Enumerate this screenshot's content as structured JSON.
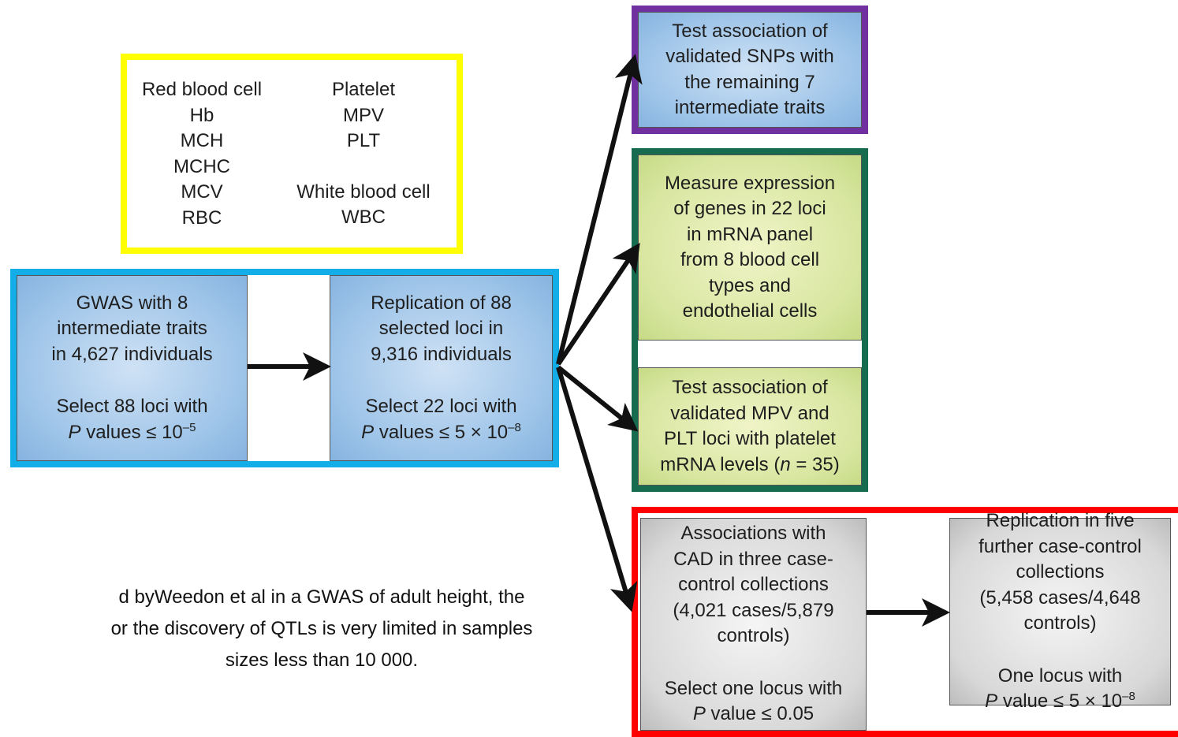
{
  "traits": {
    "left": [
      [
        "Red blood cell",
        "Hb",
        "MCH",
        "MCHC",
        "MCV",
        "RBC"
      ]
    ],
    "right": [
      [
        "Platelet",
        "MPV",
        "PLT"
      ],
      [
        "White blood cell",
        "WBC"
      ]
    ]
  },
  "boxes": {
    "gwas": {
      "paragraphs": [
        [
          "GWAS with 8",
          "intermediate traits",
          "in 4,627 individuals"
        ],
        [
          "Select 88 loci with",
          [
            {
              "italic": "P"
            },
            " values ≤ 10",
            {
              "sup": "–5"
            }
          ]
        ]
      ]
    },
    "replication": {
      "paragraphs": [
        [
          "Replication of 88",
          "selected loci in",
          "9,316 individuals"
        ],
        [
          "Select 22 loci with",
          [
            {
              "italic": "P"
            },
            " values ≤ 5 × 10",
            {
              "sup": "–8"
            }
          ]
        ]
      ]
    },
    "test_snps": {
      "paragraphs": [
        [
          "Test association of",
          "validated SNPs with",
          "the remaining 7",
          "intermediate traits"
        ]
      ]
    },
    "expression": {
      "paragraphs": [
        [
          "Measure expression",
          "of genes in 22 loci",
          "in mRNA panel",
          "from 8 blood cell",
          "types and",
          "endothelial cells"
        ]
      ]
    },
    "platelet": {
      "paragraphs": [
        [
          "Test association of",
          "validated MPV and",
          "PLT loci with platelet",
          [
            "mRNA levels (",
            {
              "italic": "n"
            },
            " = 35)"
          ]
        ]
      ]
    },
    "cad": {
      "paragraphs": [
        [
          "Associations with",
          "CAD in three case-",
          "control collections",
          "(4,021 cases/5,879",
          "controls)"
        ],
        [
          "Select one locus with",
          [
            {
              "italic": "P"
            },
            " value ≤ 0.05"
          ]
        ]
      ]
    },
    "cad_replication": {
      "paragraphs": [
        [
          "Replication in five",
          "further case-control",
          "collections",
          "(5,458 cases/4,648",
          "controls)"
        ],
        [
          "One locus with",
          [
            {
              "italic": "P"
            },
            " value ≤ 5 × 10",
            {
              "sup": "–8"
            }
          ]
        ]
      ]
    }
  },
  "caption": [
    "d byWeedon et al in a GWAS of adult height, the",
    "or the discovery of QTLs is very limited in samples",
    "sizes less than 10 000."
  ]
}
